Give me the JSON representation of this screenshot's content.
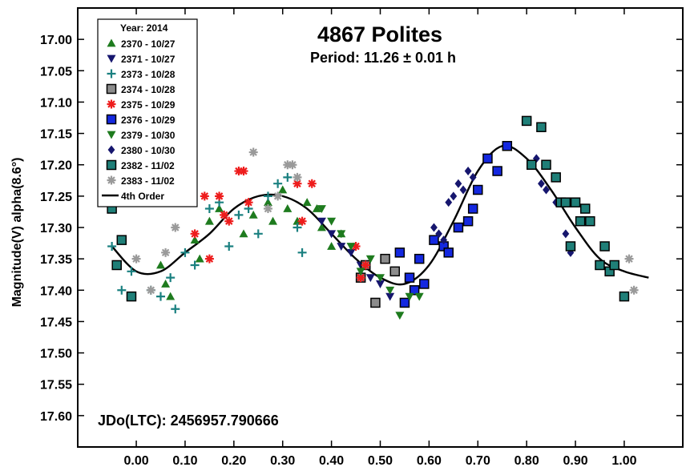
{
  "chart_data": {
    "type": "scatter",
    "title": "4867 Polites",
    "subtitle": "Period: 11.26 ± 0.01 h",
    "ylabel": "Magnitude(V) alpha(8.6°)",
    "xlabel": "",
    "annotation": "JDo(LTC): 2456957.790666",
    "legend_title": "Year: 2014",
    "legend_position": "top-left",
    "xlim": [
      -0.12,
      1.12
    ],
    "ylim": [
      17.65,
      16.95
    ],
    "y_inverted": true,
    "xticks": [
      0.0,
      0.1,
      0.2,
      0.3,
      0.4,
      0.5,
      0.6,
      0.7,
      0.8,
      0.9,
      1.0
    ],
    "xtick_labels": [
      "0.00",
      "0.10",
      "0.20",
      "0.30",
      "0.40",
      "0.50",
      "0.60",
      "0.70",
      "0.80",
      "0.90",
      "1.00"
    ],
    "yticks": [
      17.0,
      17.05,
      17.1,
      17.15,
      17.2,
      17.25,
      17.3,
      17.35,
      17.4,
      17.45,
      17.5,
      17.55,
      17.6
    ],
    "ytick_labels": [
      "17.00",
      "17.05",
      "17.10",
      "17.15",
      "17.20",
      "17.25",
      "17.30",
      "17.35",
      "17.40",
      "17.45",
      "17.50",
      "17.55",
      "17.60"
    ],
    "grid": false,
    "series": [
      {
        "name": "2370 - 10/27",
        "marker": "triangle-up",
        "color": "#1e7b1e",
        "x": [
          0.05,
          0.06,
          0.07,
          0.12,
          0.13,
          0.15,
          0.17,
          0.22,
          0.24,
          0.27,
          0.28,
          0.3,
          0.31,
          0.33,
          0.35,
          0.37,
          0.38,
          0.4,
          0.42
        ],
        "y": [
          17.36,
          17.39,
          17.41,
          17.32,
          17.35,
          17.29,
          17.27,
          17.31,
          17.28,
          17.26,
          17.29,
          17.24,
          17.27,
          17.29,
          17.26,
          17.27,
          17.3,
          17.33,
          17.31
        ]
      },
      {
        "name": "2371 - 10/27",
        "marker": "triangle-down",
        "color": "#16166e",
        "x": [
          0.38,
          0.4,
          0.42,
          0.44,
          0.46,
          0.48,
          0.5,
          0.52
        ],
        "y": [
          17.29,
          17.31,
          17.33,
          17.34,
          17.36,
          17.38,
          17.39,
          17.41
        ]
      },
      {
        "name": "2373 - 10/28",
        "marker": "plus",
        "color": "#1a8080",
        "x": [
          -0.05,
          -0.03,
          -0.01,
          0.03,
          0.05,
          0.07,
          0.08,
          0.1,
          0.12,
          0.15,
          0.17,
          0.19,
          0.21,
          0.23,
          0.25,
          0.27,
          0.29,
          0.31,
          0.33,
          0.34
        ],
        "y": [
          17.33,
          17.4,
          17.37,
          17.4,
          17.41,
          17.38,
          17.43,
          17.34,
          17.36,
          17.27,
          17.26,
          17.33,
          17.28,
          17.27,
          17.31,
          17.25,
          17.23,
          17.22,
          17.3,
          17.34
        ]
      },
      {
        "name": "2374 - 10/28",
        "marker": "square",
        "color": "#8c8c8c",
        "x": [
          0.46,
          0.47,
          0.49,
          0.51,
          0.53
        ],
        "y": [
          17.38,
          17.36,
          17.42,
          17.35,
          17.37
        ]
      },
      {
        "name": "2375 - 10/29",
        "marker": "asterisk",
        "color": "#ee1c1c",
        "x": [
          0.12,
          0.14,
          0.15,
          0.17,
          0.18,
          0.19,
          0.21,
          0.22,
          0.23,
          0.33,
          0.34,
          0.36,
          0.45,
          0.46,
          0.47
        ],
        "y": [
          17.31,
          17.25,
          17.35,
          17.25,
          17.28,
          17.29,
          17.21,
          17.21,
          17.26,
          17.23,
          17.29,
          17.23,
          17.33,
          17.38,
          17.36
        ]
      },
      {
        "name": "2376 - 10/29",
        "marker": "square",
        "color": "#1428e0",
        "x": [
          0.54,
          0.55,
          0.56,
          0.57,
          0.58,
          0.59,
          0.61,
          0.63,
          0.64,
          0.66,
          0.68,
          0.69,
          0.7,
          0.72,
          0.74,
          0.76
        ],
        "y": [
          17.34,
          17.42,
          17.38,
          17.4,
          17.35,
          17.39,
          17.32,
          17.33,
          17.34,
          17.3,
          17.29,
          17.27,
          17.24,
          17.19,
          17.21,
          17.17
        ]
      },
      {
        "name": "2379 - 10/30",
        "marker": "triangle-down",
        "color": "#1e7b1e",
        "x": [
          0.38,
          0.4,
          0.42,
          0.44,
          0.46,
          0.48,
          0.5,
          0.52,
          0.54,
          0.56,
          0.58
        ],
        "y": [
          17.27,
          17.29,
          17.31,
          17.33,
          17.37,
          17.35,
          17.38,
          17.4,
          17.44,
          17.41,
          17.41
        ]
      },
      {
        "name": "2380 - 10/30",
        "marker": "diamond",
        "color": "#16166e",
        "x": [
          0.61,
          0.62,
          0.63,
          0.64,
          0.65,
          0.66,
          0.67,
          0.68,
          0.69,
          0.82,
          0.83,
          0.84,
          0.86,
          0.88,
          0.89
        ],
        "y": [
          17.3,
          17.31,
          17.32,
          17.26,
          17.25,
          17.23,
          17.24,
          17.21,
          17.22,
          17.19,
          17.23,
          17.24,
          17.26,
          17.31,
          17.34
        ]
      },
      {
        "name": "2382 - 11/02",
        "marker": "square",
        "color": "#1f7f78",
        "x": [
          -0.05,
          -0.04,
          -0.03,
          -0.01,
          0.8,
          0.81,
          0.83,
          0.84,
          0.86,
          0.87,
          0.88,
          0.89,
          0.9,
          0.91,
          0.92,
          0.93,
          0.95,
          0.96,
          0.97,
          0.98,
          1.0
        ],
        "y": [
          17.27,
          17.36,
          17.32,
          17.41,
          17.13,
          17.2,
          17.14,
          17.2,
          17.22,
          17.26,
          17.26,
          17.33,
          17.26,
          17.29,
          17.27,
          17.29,
          17.36,
          17.33,
          17.37,
          17.36,
          17.41
        ]
      },
      {
        "name": "2383 - 11/02",
        "marker": "asterisk",
        "color": "#9a9a9a",
        "x": [
          0.0,
          0.03,
          0.06,
          0.08,
          0.24,
          0.27,
          0.29,
          0.31,
          0.32,
          0.33,
          1.01,
          1.02
        ],
        "y": [
          17.35,
          17.4,
          17.34,
          17.3,
          17.18,
          17.27,
          17.25,
          17.2,
          17.2,
          17.22,
          17.35,
          17.4
        ]
      }
    ],
    "fit": {
      "name": "4th Order",
      "type": "line",
      "color": "#000000",
      "x": [
        -0.05,
        0.0,
        0.05,
        0.1,
        0.15,
        0.2,
        0.25,
        0.3,
        0.35,
        0.4,
        0.45,
        0.5,
        0.55,
        0.6,
        0.65,
        0.7,
        0.75,
        0.8,
        0.85,
        0.9,
        0.95,
        1.0,
        1.05
      ],
      "y": [
        17.33,
        17.37,
        17.37,
        17.34,
        17.31,
        17.27,
        17.25,
        17.25,
        17.27,
        17.31,
        17.35,
        17.38,
        17.39,
        17.36,
        17.29,
        17.21,
        17.17,
        17.19,
        17.24,
        17.3,
        17.35,
        17.37,
        17.38
      ]
    }
  }
}
